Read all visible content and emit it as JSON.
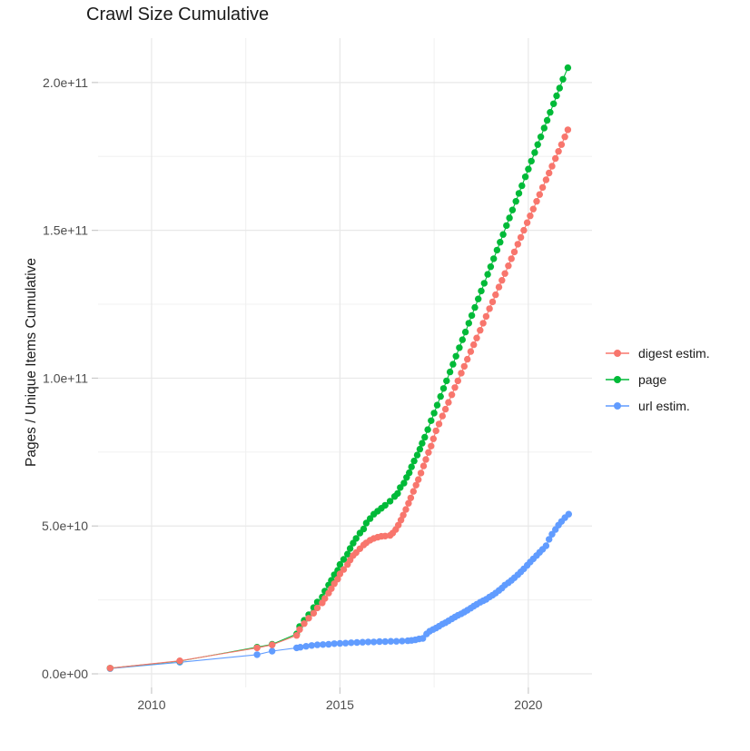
{
  "chart_data": {
    "type": "scatter",
    "title": "Crawl Size Cumulative",
    "xlabel": "",
    "ylabel": "Pages / Unique Items Cumulative",
    "legend_position": "right",
    "grid": true,
    "unit_note": "y values stored in billions (1e9)",
    "x_axis": {
      "range": [
        2008.58,
        2021.69
      ],
      "ticks": [
        2010,
        2015,
        2020
      ],
      "tick_labels": [
        "2010",
        "2015",
        "2020"
      ],
      "minor_ticks": [
        2012.5,
        2017.5
      ]
    },
    "y_axis": {
      "range_billions": [
        -4.6,
        215
      ],
      "ticks_billions": [
        0,
        50,
        100,
        150,
        200
      ],
      "tick_labels": [
        "0.0e+00",
        "5.0e+10",
        "1.0e+11",
        "1.5e+11",
        "2.0e+11"
      ],
      "minor_ticks_billions": [
        25,
        75,
        125,
        175
      ]
    },
    "draw_order": [
      2,
      1,
      0
    ],
    "series": [
      {
        "name": "digest estim.",
        "color": "#F8766D",
        "points": [
          [
            2008.9,
            1.9
          ],
          [
            2010.75,
            4.4
          ],
          [
            2012.8,
            8.8
          ],
          [
            2013.2,
            9.8
          ],
          [
            2013.85,
            13
          ],
          [
            2013.93,
            15
          ],
          [
            2014.05,
            17
          ],
          [
            2014.17,
            18.8
          ],
          [
            2014.3,
            20.5
          ],
          [
            2014.4,
            22.3
          ],
          [
            2014.53,
            24
          ],
          [
            2014.6,
            25.5
          ],
          [
            2014.7,
            27.3
          ],
          [
            2014.77,
            28.8
          ],
          [
            2014.85,
            30.5
          ],
          [
            2014.94,
            32
          ],
          [
            2015,
            33.8
          ],
          [
            2015.1,
            35.3
          ],
          [
            2015.2,
            37
          ],
          [
            2015.27,
            38.5
          ],
          [
            2015.35,
            40
          ],
          [
            2015.43,
            41
          ],
          [
            2015.53,
            42.3
          ],
          [
            2015.63,
            43.6
          ],
          [
            2015.7,
            44.3
          ],
          [
            2015.8,
            45.2
          ],
          [
            2015.9,
            45.8
          ],
          [
            2016,
            46.2
          ],
          [
            2016.1,
            46.5
          ],
          [
            2016.2,
            46.6
          ],
          [
            2016.33,
            46.8
          ],
          [
            2016.4,
            47.6
          ],
          [
            2016.48,
            48.8
          ],
          [
            2016.55,
            50.3
          ],
          [
            2016.62,
            52
          ],
          [
            2016.68,
            53.7
          ],
          [
            2016.75,
            55.6
          ],
          [
            2016.82,
            57.7
          ],
          [
            2016.88,
            59.5
          ],
          [
            2016.95,
            61.7
          ],
          [
            2017.02,
            63.8
          ],
          [
            2017.08,
            65.7
          ],
          [
            2017.15,
            67.9
          ],
          [
            2017.22,
            70.3
          ],
          [
            2017.28,
            72.5
          ],
          [
            2017.35,
            74.9
          ],
          [
            2017.42,
            77
          ],
          [
            2017.48,
            79.5
          ],
          [
            2017.55,
            82.2
          ],
          [
            2017.63,
            84.5
          ],
          [
            2017.72,
            87.2
          ],
          [
            2017.8,
            89.5
          ],
          [
            2017.88,
            91.8
          ],
          [
            2017.97,
            94.4
          ],
          [
            2018.05,
            96.8
          ],
          [
            2018.13,
            99.1
          ],
          [
            2018.22,
            101.7
          ],
          [
            2018.3,
            104
          ],
          [
            2018.38,
            106.4
          ],
          [
            2018.47,
            109
          ],
          [
            2018.55,
            111.3
          ],
          [
            2018.63,
            113.6
          ],
          [
            2018.72,
            116.2
          ],
          [
            2018.8,
            118.6
          ],
          [
            2018.88,
            120.9
          ],
          [
            2018.97,
            123.5
          ],
          [
            2019.05,
            125.8
          ],
          [
            2019.13,
            128.2
          ],
          [
            2019.22,
            130.8
          ],
          [
            2019.3,
            133.1
          ],
          [
            2019.38,
            135.4
          ],
          [
            2019.47,
            138
          ],
          [
            2019.55,
            140.4
          ],
          [
            2019.63,
            142.7
          ],
          [
            2019.72,
            145.3
          ],
          [
            2019.8,
            147.6
          ],
          [
            2019.88,
            150
          ],
          [
            2019.97,
            152.6
          ],
          [
            2020.05,
            154.9
          ],
          [
            2020.13,
            157.2
          ],
          [
            2020.22,
            159.8
          ],
          [
            2020.3,
            162.1
          ],
          [
            2020.38,
            164.5
          ],
          [
            2020.47,
            167.1
          ],
          [
            2020.55,
            169.4
          ],
          [
            2020.63,
            171.7
          ],
          [
            2020.72,
            174.3
          ],
          [
            2020.8,
            176.7
          ],
          [
            2020.88,
            179
          ],
          [
            2020.97,
            181.6
          ],
          [
            2021.05,
            184
          ]
        ]
      },
      {
        "name": "page",
        "color": "#00BA38",
        "points": [
          [
            2008.9,
            1.9
          ],
          [
            2010.75,
            4.3
          ],
          [
            2012.8,
            9
          ],
          [
            2013.2,
            10
          ],
          [
            2013.85,
            13.5
          ],
          [
            2013.93,
            16
          ],
          [
            2014.05,
            18.1
          ],
          [
            2014.17,
            20
          ],
          [
            2014.3,
            22.4
          ],
          [
            2014.4,
            24.3
          ],
          [
            2014.53,
            26
          ],
          [
            2014.6,
            28
          ],
          [
            2014.7,
            30
          ],
          [
            2014.77,
            31.6
          ],
          [
            2014.85,
            33.5
          ],
          [
            2014.94,
            35
          ],
          [
            2015,
            37
          ],
          [
            2015.1,
            38.7
          ],
          [
            2015.2,
            40.5
          ],
          [
            2015.27,
            42.4
          ],
          [
            2015.35,
            44.2
          ],
          [
            2015.43,
            45.8
          ],
          [
            2015.53,
            47.6
          ],
          [
            2015.63,
            49
          ],
          [
            2015.7,
            51
          ],
          [
            2015.8,
            52.5
          ],
          [
            2015.9,
            54
          ],
          [
            2016,
            55
          ],
          [
            2016.1,
            56
          ],
          [
            2016.2,
            57
          ],
          [
            2016.33,
            58.4
          ],
          [
            2016.45,
            60
          ],
          [
            2016.53,
            61
          ],
          [
            2016.6,
            63
          ],
          [
            2016.7,
            64.5
          ],
          [
            2016.77,
            66.4
          ],
          [
            2016.84,
            68
          ],
          [
            2016.9,
            70
          ],
          [
            2016.97,
            72
          ],
          [
            2017.05,
            74
          ],
          [
            2017.12,
            76
          ],
          [
            2017.18,
            78
          ],
          [
            2017.25,
            80
          ],
          [
            2017.33,
            82.6
          ],
          [
            2017.42,
            85.6
          ],
          [
            2017.5,
            88.2
          ],
          [
            2017.58,
            90.9
          ],
          [
            2017.67,
            93.8
          ],
          [
            2017.75,
            96.5
          ],
          [
            2017.83,
            99.1
          ],
          [
            2017.92,
            102.1
          ],
          [
            2018,
            104.7
          ],
          [
            2018.08,
            107.4
          ],
          [
            2018.17,
            110.3
          ],
          [
            2018.25,
            113
          ],
          [
            2018.33,
            115.6
          ],
          [
            2018.42,
            118.6
          ],
          [
            2018.5,
            121.2
          ],
          [
            2018.58,
            123.9
          ],
          [
            2018.67,
            126.8
          ],
          [
            2018.75,
            129.5
          ],
          [
            2018.83,
            132.1
          ],
          [
            2018.92,
            135.1
          ],
          [
            2019,
            137.7
          ],
          [
            2019.08,
            140.4
          ],
          [
            2019.17,
            143.3
          ],
          [
            2019.25,
            146
          ],
          [
            2019.33,
            148.6
          ],
          [
            2019.42,
            151.6
          ],
          [
            2019.5,
            154.2
          ],
          [
            2019.58,
            156.9
          ],
          [
            2019.67,
            159.8
          ],
          [
            2019.75,
            162.5
          ],
          [
            2019.83,
            165.1
          ],
          [
            2019.92,
            168.1
          ],
          [
            2020,
            170.7
          ],
          [
            2020.08,
            173.4
          ],
          [
            2020.17,
            176.3
          ],
          [
            2020.25,
            179
          ],
          [
            2020.33,
            181.6
          ],
          [
            2020.42,
            184.6
          ],
          [
            2020.5,
            187.2
          ],
          [
            2020.58,
            189.9
          ],
          [
            2020.67,
            192.8
          ],
          [
            2020.75,
            195.5
          ],
          [
            2020.83,
            198.1
          ],
          [
            2020.92,
            201.1
          ],
          [
            2021.05,
            205
          ]
        ]
      },
      {
        "name": "url estim.",
        "color": "#619CFF",
        "points": [
          [
            2008.9,
            1.8
          ],
          [
            2010.75,
            3.9
          ],
          [
            2012.8,
            6.5
          ],
          [
            2013.2,
            7.7
          ],
          [
            2013.85,
            8.8
          ],
          [
            2013.95,
            9
          ],
          [
            2014.1,
            9.3
          ],
          [
            2014.25,
            9.6
          ],
          [
            2014.4,
            9.8
          ],
          [
            2014.55,
            9.9
          ],
          [
            2014.7,
            10
          ],
          [
            2014.85,
            10.2
          ],
          [
            2015,
            10.3
          ],
          [
            2015.15,
            10.4
          ],
          [
            2015.3,
            10.5
          ],
          [
            2015.45,
            10.6
          ],
          [
            2015.6,
            10.7
          ],
          [
            2015.75,
            10.8
          ],
          [
            2015.9,
            10.8
          ],
          [
            2016.05,
            10.9
          ],
          [
            2016.2,
            10.9
          ],
          [
            2016.35,
            11
          ],
          [
            2016.5,
            11
          ],
          [
            2016.65,
            11.1
          ],
          [
            2016.8,
            11.2
          ],
          [
            2016.9,
            11.3
          ],
          [
            2017,
            11.5
          ],
          [
            2017.1,
            11.8
          ],
          [
            2017.2,
            12
          ],
          [
            2017.3,
            13.5
          ],
          [
            2017.38,
            14.4
          ],
          [
            2017.47,
            15
          ],
          [
            2017.55,
            15.5
          ],
          [
            2017.63,
            16.1
          ],
          [
            2017.72,
            16.8
          ],
          [
            2017.8,
            17.3
          ],
          [
            2017.88,
            17.9
          ],
          [
            2017.97,
            18.6
          ],
          [
            2018.05,
            19.2
          ],
          [
            2018.13,
            19.8
          ],
          [
            2018.22,
            20.3
          ],
          [
            2018.3,
            20.9
          ],
          [
            2018.38,
            21.5
          ],
          [
            2018.47,
            22.2
          ],
          [
            2018.55,
            22.9
          ],
          [
            2018.63,
            23.5
          ],
          [
            2018.72,
            24.2
          ],
          [
            2018.8,
            24.7
          ],
          [
            2018.88,
            25.2
          ],
          [
            2018.97,
            26
          ],
          [
            2019.05,
            26.6
          ],
          [
            2019.13,
            27.3
          ],
          [
            2019.22,
            28.2
          ],
          [
            2019.3,
            29
          ],
          [
            2019.38,
            30
          ],
          [
            2019.47,
            30.8
          ],
          [
            2019.55,
            31.6
          ],
          [
            2019.63,
            32.5
          ],
          [
            2019.72,
            33.5
          ],
          [
            2019.8,
            34.5
          ],
          [
            2019.88,
            35.5
          ],
          [
            2019.97,
            36.7
          ],
          [
            2020.05,
            37.8
          ],
          [
            2020.13,
            38.9
          ],
          [
            2020.22,
            40
          ],
          [
            2020.3,
            41.1
          ],
          [
            2020.38,
            42.1
          ],
          [
            2020.47,
            43.3
          ],
          [
            2020.55,
            45.5
          ],
          [
            2020.63,
            47.2
          ],
          [
            2020.72,
            48.8
          ],
          [
            2020.8,
            50.3
          ],
          [
            2020.88,
            51.5
          ],
          [
            2020.97,
            52.8
          ],
          [
            2021.07,
            54
          ]
        ]
      }
    ],
    "style": {
      "grid_major_color": "#e8e8e8",
      "grid_minor_color": "#f0f0f0",
      "tick_color": "#c9c9c9",
      "axis_text_color": "#4d4d4d",
      "title_color": "#1a1a1a",
      "point_radius": 3.7
    }
  }
}
